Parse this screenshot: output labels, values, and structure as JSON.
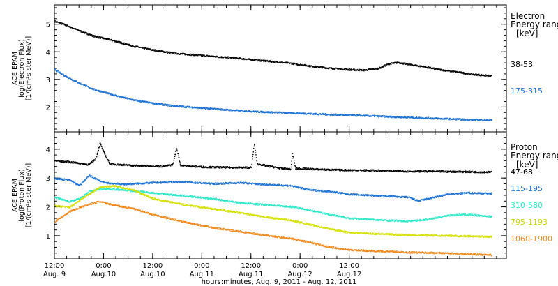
{
  "chart_data": [
    {
      "type": "scatter",
      "panel": "electron",
      "ylabel_lines": [
        "ACE EPAM",
        "log(Electron Flux)",
        "[1/(cm²s ster MeV)]"
      ],
      "ylim": [
        1.1,
        5.7
      ],
      "yticks": [
        2,
        3,
        4,
        5
      ],
      "legend_title": [
        "Electron",
        "Energy range"
      ],
      "legend_unit": "[keV]",
      "legend_placement": "right",
      "series": [
        {
          "name": "38-53",
          "color": "#000000",
          "points": [
            [
              0,
              5.12
            ],
            [
              0.1,
              5.0
            ],
            [
              0.25,
              4.78
            ],
            [
              0.4,
              4.58
            ],
            [
              0.6,
              4.42
            ],
            [
              0.8,
              4.22
            ],
            [
              1.0,
              4.08
            ],
            [
              1.2,
              3.97
            ],
            [
              1.5,
              3.88
            ],
            [
              1.8,
              3.8
            ],
            [
              2.1,
              3.7
            ],
            [
              2.4,
              3.6
            ],
            [
              2.6,
              3.5
            ],
            [
              2.8,
              3.42
            ],
            [
              3.0,
              3.37
            ],
            [
              3.15,
              3.35
            ],
            [
              3.3,
              3.42
            ],
            [
              3.4,
              3.58
            ],
            [
              3.5,
              3.63
            ],
            [
              3.6,
              3.56
            ],
            [
              3.75,
              3.48
            ],
            [
              3.9,
              3.38
            ],
            [
              4.1,
              3.28
            ],
            [
              4.25,
              3.2
            ],
            [
              4.45,
              3.14
            ]
          ]
        },
        {
          "name": "175-315",
          "color": "#1e73d2",
          "points": [
            [
              0,
              3.38
            ],
            [
              0.1,
              3.15
            ],
            [
              0.25,
              2.88
            ],
            [
              0.4,
              2.65
            ],
            [
              0.6,
              2.45
            ],
            [
              0.8,
              2.27
            ],
            [
              1.0,
              2.15
            ],
            [
              1.2,
              2.06
            ],
            [
              1.5,
              1.98
            ],
            [
              1.8,
              1.9
            ],
            [
              2.1,
              1.84
            ],
            [
              2.4,
              1.8
            ],
            [
              2.7,
              1.76
            ],
            [
              3.0,
              1.72
            ],
            [
              3.3,
              1.68
            ],
            [
              3.6,
              1.64
            ],
            [
              3.9,
              1.6
            ],
            [
              4.2,
              1.56
            ],
            [
              4.45,
              1.54
            ]
          ]
        }
      ]
    },
    {
      "type": "scatter",
      "panel": "proton",
      "ylabel_lines": [
        "ACE EPAM",
        "log(Proton Flux)",
        "[1/(cm²s ster MeV)]"
      ],
      "ylim": [
        0.2,
        4.6
      ],
      "yticks": [
        1,
        2,
        3,
        4
      ],
      "legend_title": [
        "Proton",
        "Energy range"
      ],
      "legend_unit": "[keV]",
      "legend_placement": "right",
      "series": [
        {
          "name": "47-68",
          "color": "#000000",
          "points": [
            [
              0,
              3.62
            ],
            [
              0.2,
              3.55
            ],
            [
              0.35,
              3.48
            ],
            [
              0.42,
              3.7
            ],
            [
              0.46,
              4.22
            ],
            [
              0.5,
              3.9
            ],
            [
              0.56,
              3.5
            ],
            [
              0.8,
              3.45
            ],
            [
              1.1,
              3.42
            ],
            [
              1.2,
              3.48
            ],
            [
              1.24,
              4.05
            ],
            [
              1.28,
              3.45
            ],
            [
              1.5,
              3.4
            ],
            [
              1.8,
              3.38
            ],
            [
              2.0,
              3.38
            ],
            [
              2.03,
              4.2
            ],
            [
              2.06,
              3.5
            ],
            [
              2.3,
              3.35
            ],
            [
              2.4,
              3.32
            ],
            [
              2.42,
              3.85
            ],
            [
              2.45,
              3.35
            ],
            [
              2.8,
              3.3
            ],
            [
              3.2,
              3.28
            ],
            [
              3.6,
              3.25
            ],
            [
              4.0,
              3.24
            ],
            [
              4.45,
              3.22
            ]
          ]
        },
        {
          "name": "115-195",
          "color": "#1e73d2",
          "points": [
            [
              0,
              3.0
            ],
            [
              0.15,
              2.95
            ],
            [
              0.25,
              2.75
            ],
            [
              0.35,
              3.1
            ],
            [
              0.5,
              2.85
            ],
            [
              0.7,
              2.8
            ],
            [
              1.0,
              2.85
            ],
            [
              1.3,
              2.88
            ],
            [
              1.6,
              2.82
            ],
            [
              1.9,
              2.85
            ],
            [
              2.1,
              2.8
            ],
            [
              2.4,
              2.75
            ],
            [
              2.6,
              2.6
            ],
            [
              2.8,
              2.55
            ],
            [
              3.0,
              2.45
            ],
            [
              3.3,
              2.4
            ],
            [
              3.6,
              2.35
            ],
            [
              3.7,
              2.22
            ],
            [
              3.8,
              2.3
            ],
            [
              4.0,
              2.45
            ],
            [
              4.2,
              2.5
            ],
            [
              4.45,
              2.48
            ]
          ]
        },
        {
          "name": "310-580",
          "color": "#2ee8c8",
          "points": [
            [
              0,
              2.35
            ],
            [
              0.15,
              2.2
            ],
            [
              0.25,
              2.3
            ],
            [
              0.35,
              2.55
            ],
            [
              0.5,
              2.65
            ],
            [
              0.7,
              2.6
            ],
            [
              1.0,
              2.5
            ],
            [
              1.3,
              2.4
            ],
            [
              1.6,
              2.3
            ],
            [
              1.9,
              2.15
            ],
            [
              2.1,
              2.1
            ],
            [
              2.4,
              2.02
            ],
            [
              2.6,
              1.9
            ],
            [
              2.8,
              1.75
            ],
            [
              3.0,
              1.62
            ],
            [
              3.3,
              1.56
            ],
            [
              3.6,
              1.52
            ],
            [
              3.8,
              1.58
            ],
            [
              4.0,
              1.72
            ],
            [
              4.2,
              1.75
            ],
            [
              4.45,
              1.68
            ]
          ]
        },
        {
          "name": "795-1193",
          "color": "#d4e000",
          "points": [
            [
              0,
              2.05
            ],
            [
              0.15,
              2.0
            ],
            [
              0.3,
              2.35
            ],
            [
              0.45,
              2.68
            ],
            [
              0.6,
              2.75
            ],
            [
              0.8,
              2.6
            ],
            [
              1.0,
              2.3
            ],
            [
              1.3,
              2.1
            ],
            [
              1.6,
              1.95
            ],
            [
              1.9,
              1.8
            ],
            [
              2.1,
              1.68
            ],
            [
              2.4,
              1.55
            ],
            [
              2.6,
              1.4
            ],
            [
              2.8,
              1.25
            ],
            [
              3.0,
              1.12
            ],
            [
              3.3,
              1.08
            ],
            [
              3.6,
              1.04
            ],
            [
              3.9,
              1.02
            ],
            [
              4.2,
              1.0
            ],
            [
              4.45,
              0.98
            ]
          ]
        },
        {
          "name": "1060-1900",
          "color": "#f08a1e",
          "points": [
            [
              0,
              1.5
            ],
            [
              0.15,
              1.85
            ],
            [
              0.3,
              2.05
            ],
            [
              0.45,
              2.2
            ],
            [
              0.6,
              2.08
            ],
            [
              0.8,
              1.95
            ],
            [
              1.0,
              1.75
            ],
            [
              1.3,
              1.5
            ],
            [
              1.6,
              1.3
            ],
            [
              1.9,
              1.15
            ],
            [
              2.1,
              1.05
            ],
            [
              2.4,
              0.92
            ],
            [
              2.6,
              0.78
            ],
            [
              2.8,
              0.62
            ],
            [
              3.0,
              0.52
            ],
            [
              3.3,
              0.48
            ],
            [
              3.6,
              0.44
            ],
            [
              3.9,
              0.42
            ],
            [
              4.2,
              0.38
            ],
            [
              4.45,
              0.35
            ]
          ]
        }
      ]
    }
  ],
  "x_axis": {
    "xlabel": "hours:minutes, Aug.  9, 2011 - Aug. 12, 2011",
    "xlim": [
      0,
      4.6
    ],
    "ticks": [
      {
        "x": 0,
        "time": "12:00",
        "date": "Aug. 9"
      },
      {
        "x": 0.5,
        "time": "0:00",
        "date": "Aug.10"
      },
      {
        "x": 1.0,
        "time": "12:00",
        "date": "Aug.10"
      },
      {
        "x": 1.5,
        "time": "0:00",
        "date": "Aug.11"
      },
      {
        "x": 2.0,
        "time": "12:00",
        "date": "Aug.11"
      },
      {
        "x": 2.5,
        "time": "0:00",
        "date": "Aug.12"
      },
      {
        "x": 3.0,
        "time": "12:00",
        "date": "Aug.12"
      }
    ]
  }
}
